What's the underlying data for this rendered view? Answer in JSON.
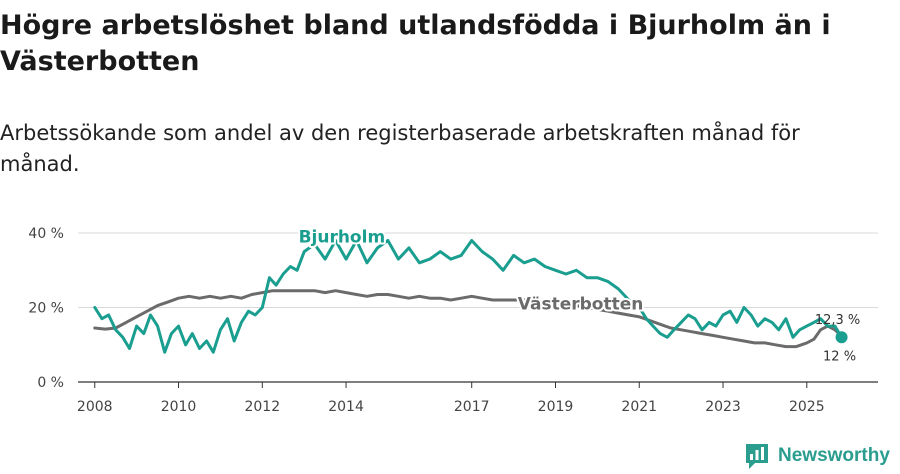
{
  "title": "Högre arbetslöshet bland utlandsfödda i Bjurholm än i Västerbotten",
  "subtitle": "Arbetssökande som andel av den registerbaserade arbetskraften månad för månad.",
  "brand": "Newsworthy",
  "colors": {
    "bjurholm": "#1a9e8f",
    "vasterbotten": "#6b6b6b",
    "grid": "#d9d9d9",
    "axis": "#333333"
  },
  "chart_data": {
    "type": "line",
    "title": "Högre arbetslöshet bland utlandsfödda i Bjurholm än i Västerbotten",
    "xlabel": "",
    "ylabel": "",
    "xlim": [
      2007.6,
      2026.7
    ],
    "ylim": [
      0,
      40
    ],
    "x_ticks": [
      2008,
      2010,
      2012,
      2014,
      2017,
      2019,
      2021,
      2023,
      2025
    ],
    "x_tick_labels": [
      "2008",
      "2010",
      "2012",
      "2014",
      "2017",
      "2019",
      "2021",
      "2023",
      "2025"
    ],
    "y_ticks": [
      0,
      20,
      40
    ],
    "y_tick_labels": [
      "0 %",
      "20 %",
      "40 %"
    ],
    "grid": true,
    "series": [
      {
        "name": "Bjurholm",
        "label": "Bjurholm",
        "x": [
          2008.0,
          2008.17,
          2008.33,
          2008.5,
          2008.67,
          2008.83,
          2009.0,
          2009.17,
          2009.33,
          2009.5,
          2009.67,
          2009.83,
          2010.0,
          2010.17,
          2010.33,
          2010.5,
          2010.67,
          2010.83,
          2011.0,
          2011.17,
          2011.33,
          2011.5,
          2011.67,
          2011.83,
          2012.0,
          2012.17,
          2012.33,
          2012.5,
          2012.67,
          2012.83,
          2013.0,
          2013.25,
          2013.5,
          2013.75,
          2014.0,
          2014.25,
          2014.5,
          2014.75,
          2015.0,
          2015.25,
          2015.5,
          2015.75,
          2016.0,
          2016.25,
          2016.5,
          2016.75,
          2017.0,
          2017.25,
          2017.5,
          2017.75,
          2018.0,
          2018.25,
          2018.5,
          2018.75,
          2019.0,
          2019.25,
          2019.5,
          2019.75,
          2020.0,
          2020.25,
          2020.5,
          2020.75,
          2021.0,
          2021.17,
          2021.33,
          2021.5,
          2021.67,
          2021.83,
          2022.0,
          2022.17,
          2022.33,
          2022.5,
          2022.67,
          2022.83,
          2023.0,
          2023.17,
          2023.33,
          2023.5,
          2023.67,
          2023.83,
          2024.0,
          2024.17,
          2024.33,
          2024.5,
          2024.67,
          2024.83,
          2025.0,
          2025.17,
          2025.33,
          2025.5,
          2025.67,
          2025.83
        ],
        "values": [
          20,
          17,
          18,
          14,
          12,
          9,
          15,
          13,
          18,
          15,
          8,
          13,
          15,
          10,
          13,
          9,
          11,
          8,
          14,
          17,
          11,
          16,
          19,
          18,
          20,
          28,
          26,
          29,
          31,
          30,
          35,
          37,
          33,
          38,
          33,
          38,
          32,
          36,
          38,
          33,
          36,
          32,
          33,
          35,
          33,
          34,
          38,
          35,
          33,
          30,
          34,
          32,
          33,
          31,
          30,
          29,
          30,
          28,
          28,
          27,
          25,
          22,
          20,
          17,
          15,
          13,
          12,
          14,
          16,
          18,
          17,
          14,
          16,
          15,
          18,
          19,
          16,
          20,
          18,
          15,
          17,
          16,
          14,
          17,
          12,
          14,
          15,
          16,
          17,
          15,
          15,
          12
        ]
      },
      {
        "name": "Västerbotten",
        "label": "Västerbotten",
        "x": [
          2008.0,
          2008.25,
          2008.5,
          2008.75,
          2009.0,
          2009.25,
          2009.5,
          2009.75,
          2010.0,
          2010.25,
          2010.5,
          2010.75,
          2011.0,
          2011.25,
          2011.5,
          2011.75,
          2012.0,
          2012.25,
          2012.5,
          2012.75,
          2013.0,
          2013.25,
          2013.5,
          2013.75,
          2014.0,
          2014.25,
          2014.5,
          2014.75,
          2015.0,
          2015.25,
          2015.5,
          2015.75,
          2016.0,
          2016.25,
          2016.5,
          2016.75,
          2017.0,
          2017.25,
          2017.5,
          2017.75,
          2018.0,
          2018.25,
          2018.5,
          2018.75,
          2019.0,
          2019.25,
          2019.5,
          2019.75,
          2020.0,
          2020.25,
          2020.5,
          2020.75,
          2021.0,
          2021.25,
          2021.5,
          2021.75,
          2022.0,
          2022.25,
          2022.5,
          2022.75,
          2023.0,
          2023.25,
          2023.5,
          2023.75,
          2024.0,
          2024.25,
          2024.5,
          2024.75,
          2025.0,
          2025.17,
          2025.33,
          2025.5,
          2025.67,
          2025.83
        ],
        "values": [
          14.5,
          14.2,
          14.5,
          16,
          17.5,
          19,
          20.5,
          21.5,
          22.5,
          23,
          22.5,
          23,
          22.5,
          23,
          22.5,
          23.5,
          24,
          24.5,
          24.5,
          24.5,
          24.5,
          24.5,
          24,
          24.5,
          24,
          23.5,
          23,
          23.5,
          23.5,
          23,
          22.5,
          23,
          22.5,
          22.5,
          22,
          22.5,
          23,
          22.5,
          22,
          22,
          22,
          22,
          21.5,
          21.5,
          21,
          20.5,
          20.5,
          20,
          19.5,
          19,
          18.5,
          18,
          17.5,
          16.5,
          15.5,
          14.5,
          14,
          13.5,
          13,
          12.5,
          12,
          11.5,
          11,
          10.5,
          10.5,
          10,
          9.5,
          9.5,
          10.5,
          11.5,
          14,
          15,
          14,
          12.3
        ]
      }
    ],
    "annotations": [
      {
        "series": "Bjurholm",
        "text": "12 %",
        "value": 12,
        "x": 2025.83
      },
      {
        "series": "Västerbotten",
        "text": "12,3 %",
        "value": 12.3,
        "x": 2025.83
      }
    ]
  }
}
